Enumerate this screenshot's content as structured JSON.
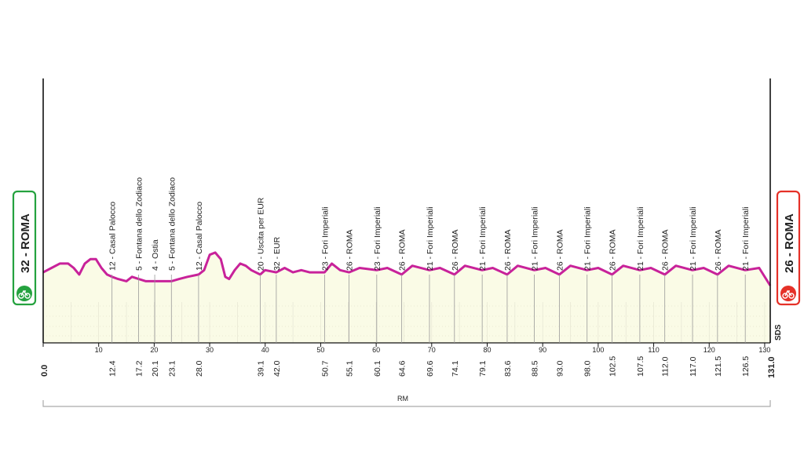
{
  "colors": {
    "profile_line": "#c8229a",
    "plain_fill": "#fafbe6",
    "start_badge": "#25a23f",
    "finish_badge": "#e53128",
    "axis": "#111111",
    "guide": "#bbbbbb",
    "bracket": "#aaaaaa"
  },
  "icons": {
    "start": "bicycle-icon",
    "finish": "bicycle-icon"
  },
  "start": {
    "label": "32 - ROMA",
    "km": "0.0",
    "altitude": 32
  },
  "finish": {
    "label": "26 - ROMA",
    "km": "131.0",
    "altitude": 26
  },
  "sds_label": "SDS",
  "region_label": "RM",
  "waypoints": [
    {
      "km": 12.4,
      "km_label": "12.4",
      "label": "12 - Casal Palocco"
    },
    {
      "km": 17.2,
      "km_label": "17.2",
      "label": "5 - Fontana dello Zodiaco"
    },
    {
      "km": 20.1,
      "km_label": "20.1",
      "label": "4 - Ostia"
    },
    {
      "km": 23.1,
      "km_label": "23.1",
      "label": "5 - Fontana dello Zodiaco"
    },
    {
      "km": 28.0,
      "km_label": "28.0",
      "label": "12 - Casal Palocco"
    },
    {
      "km": 39.1,
      "km_label": "39.1",
      "label": "20 - Uscita per EUR"
    },
    {
      "km": 42.0,
      "km_label": "42.0",
      "label": "32 - EUR"
    },
    {
      "km": 50.7,
      "km_label": "50.7",
      "label": "23 - Fori Imperiali"
    },
    {
      "km": 55.1,
      "km_label": "55.1",
      "label": "26 - ROMA"
    },
    {
      "km": 60.1,
      "km_label": "60.1",
      "label": "23 - Fori Imperiali"
    },
    {
      "km": 64.6,
      "km_label": "64.6",
      "label": "26 - ROMA"
    },
    {
      "km": 69.6,
      "km_label": "69.6",
      "label": "21 - Fori Imperiali"
    },
    {
      "km": 74.1,
      "km_label": "74.1",
      "label": "26 - ROMA"
    },
    {
      "km": 79.1,
      "km_label": "79.1",
      "label": "21 - Fori Imperiali"
    },
    {
      "km": 83.6,
      "km_label": "83.6",
      "label": "26 - ROMA"
    },
    {
      "km": 88.5,
      "km_label": "88.5",
      "label": "21 - Fori Imperiali"
    },
    {
      "km": 93.0,
      "km_label": "93.0",
      "label": "26 - ROMA"
    },
    {
      "km": 98.0,
      "km_label": "98.0",
      "label": "21 - Fori Imperiali"
    },
    {
      "km": 102.5,
      "km_label": "102.5",
      "label": "26 - ROMA"
    },
    {
      "km": 107.5,
      "km_label": "107.5",
      "label": "21 - Fori Imperiali"
    },
    {
      "km": 112.0,
      "km_label": "112.0",
      "label": "26 - ROMA"
    },
    {
      "km": 117.0,
      "km_label": "117.0",
      "label": "21 - Fori Imperiali"
    },
    {
      "km": 121.5,
      "km_label": "121.5",
      "label": "26 - ROMA"
    },
    {
      "km": 126.5,
      "km_label": "126.5",
      "label": "21 - Fori Imperiali"
    }
  ],
  "chart_data": {
    "type": "area",
    "title": "",
    "xlabel": "",
    "ylabel": "",
    "x_range": [
      0,
      131
    ],
    "x_ticks": [
      0,
      10,
      20,
      30,
      40,
      50,
      60,
      70,
      80,
      90,
      100,
      110,
      120,
      130
    ],
    "x_tick_labels": [
      "0",
      "10",
      "20",
      "30",
      "40",
      "50",
      "60",
      "70",
      "80",
      "90",
      "100",
      "110",
      "120",
      "130"
    ],
    "y_range": [
      0,
      120
    ],
    "series": [
      {
        "x": [
          0,
          1.5,
          3,
          4.5,
          5.5,
          6.5,
          7.5,
          8.5,
          9.5,
          10.5,
          11.5,
          12.4,
          13.5,
          15,
          16,
          17.2,
          18.5,
          20.1,
          21.5,
          23.1,
          24.5,
          26,
          28,
          29,
          30,
          31,
          32,
          32.8,
          33.5,
          34.5,
          35.5,
          36.5,
          37.5,
          39.1,
          40,
          42,
          43.5,
          45,
          46.5,
          48,
          50.7,
          52,
          53.5,
          55.1,
          57,
          60.1,
          62,
          64.6,
          66.5,
          69.6,
          71.5,
          74.1,
          76,
          79.1,
          81,
          83.6,
          85.5,
          88.5,
          90.5,
          93,
          95,
          98,
          100,
          102.5,
          104.5,
          107.5,
          109.5,
          112,
          114,
          117,
          119,
          121.5,
          123.5,
          126.5,
          129,
          131
        ],
        "y": [
          32,
          34,
          36,
          36,
          34,
          31,
          36,
          38,
          38,
          34,
          31,
          30,
          29,
          28,
          30,
          29,
          28,
          28,
          28,
          28,
          29,
          30,
          31,
          33,
          40,
          41,
          38,
          30,
          29,
          33,
          36,
          35,
          33,
          31,
          33,
          32,
          34,
          32,
          33,
          32,
          32,
          36,
          33,
          32,
          34,
          33,
          34,
          31,
          35,
          33,
          34,
          31,
          35,
          33,
          34,
          31,
          35,
          33,
          34,
          31,
          35,
          33,
          34,
          31,
          35,
          33,
          34,
          31,
          35,
          33,
          34,
          31,
          35,
          33,
          34,
          26
        ]
      }
    ],
    "grid": true,
    "legend": "none"
  }
}
